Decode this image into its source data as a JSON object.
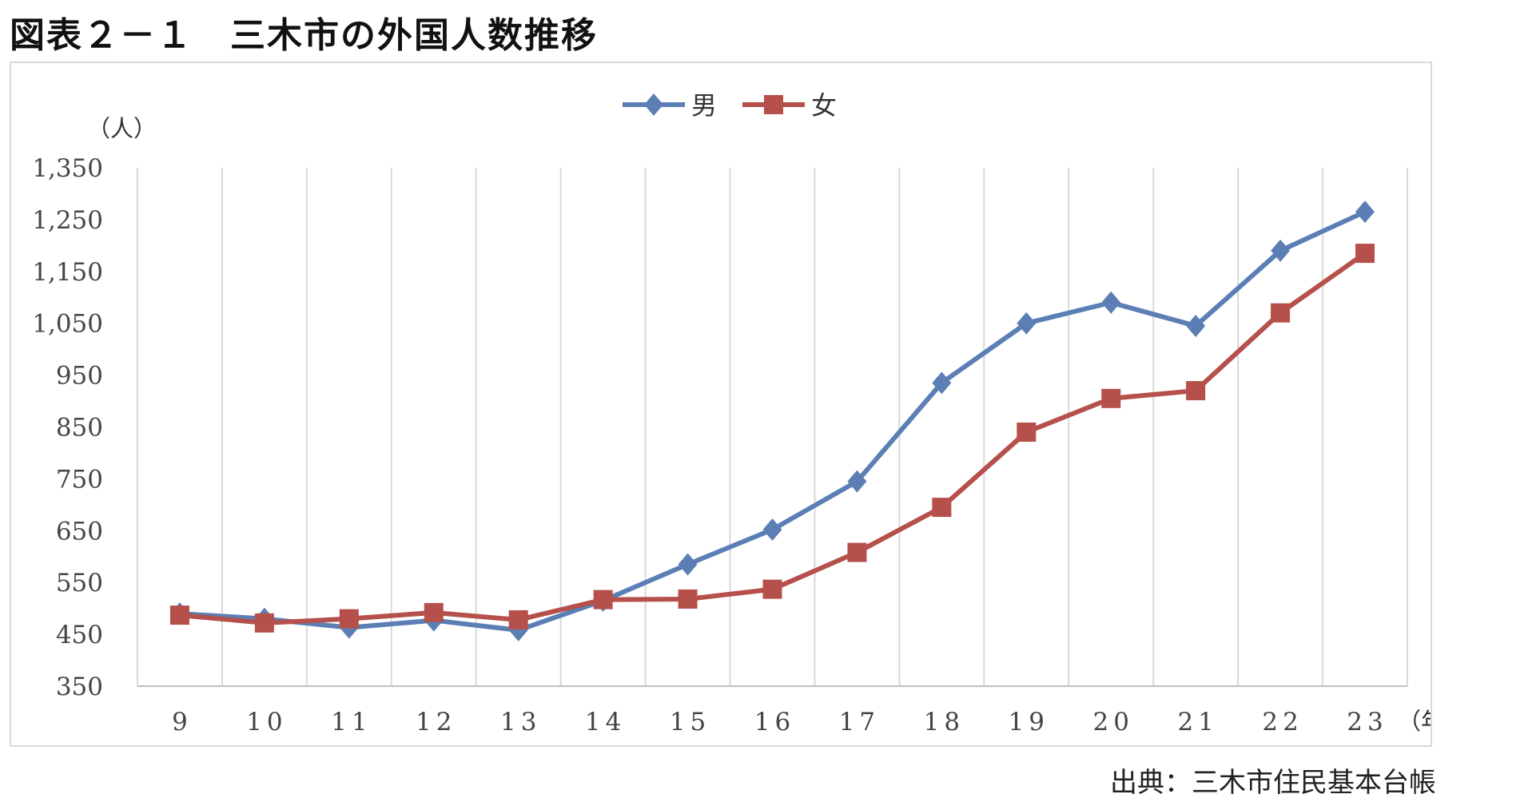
{
  "header": {
    "title": "図表２－１　三木市の外国人数推移"
  },
  "footer": {
    "source": "出典：三木市住民基本台帳"
  },
  "chart_data": {
    "type": "line",
    "y_unit_label": "（人）",
    "x_unit_label": "（年（西暦））",
    "categories": [
      "9",
      "10",
      "11",
      "12",
      "13",
      "14",
      "15",
      "16",
      "17",
      "18",
      "19",
      "20",
      "21",
      "22",
      "23"
    ],
    "yticks": [
      "1,350",
      "1,250",
      "1,150",
      "1,050",
      "950",
      "850",
      "750",
      "650",
      "550",
      "450",
      "350"
    ],
    "ylim": [
      350,
      1350
    ],
    "grid": "vertical",
    "legend_position": "top-center",
    "series": [
      {
        "name": "男",
        "color": "#5b7fb5",
        "marker": "diamond",
        "values": [
          490,
          480,
          463,
          477,
          458,
          515,
          585,
          652,
          745,
          935,
          1050,
          1090,
          1045,
          1190,
          1265
        ]
      },
      {
        "name": "女",
        "color": "#b5504b",
        "marker": "square",
        "values": [
          487,
          472,
          480,
          492,
          478,
          517,
          518,
          537,
          608,
          695,
          840,
          905,
          920,
          1070,
          1185
        ]
      }
    ]
  }
}
